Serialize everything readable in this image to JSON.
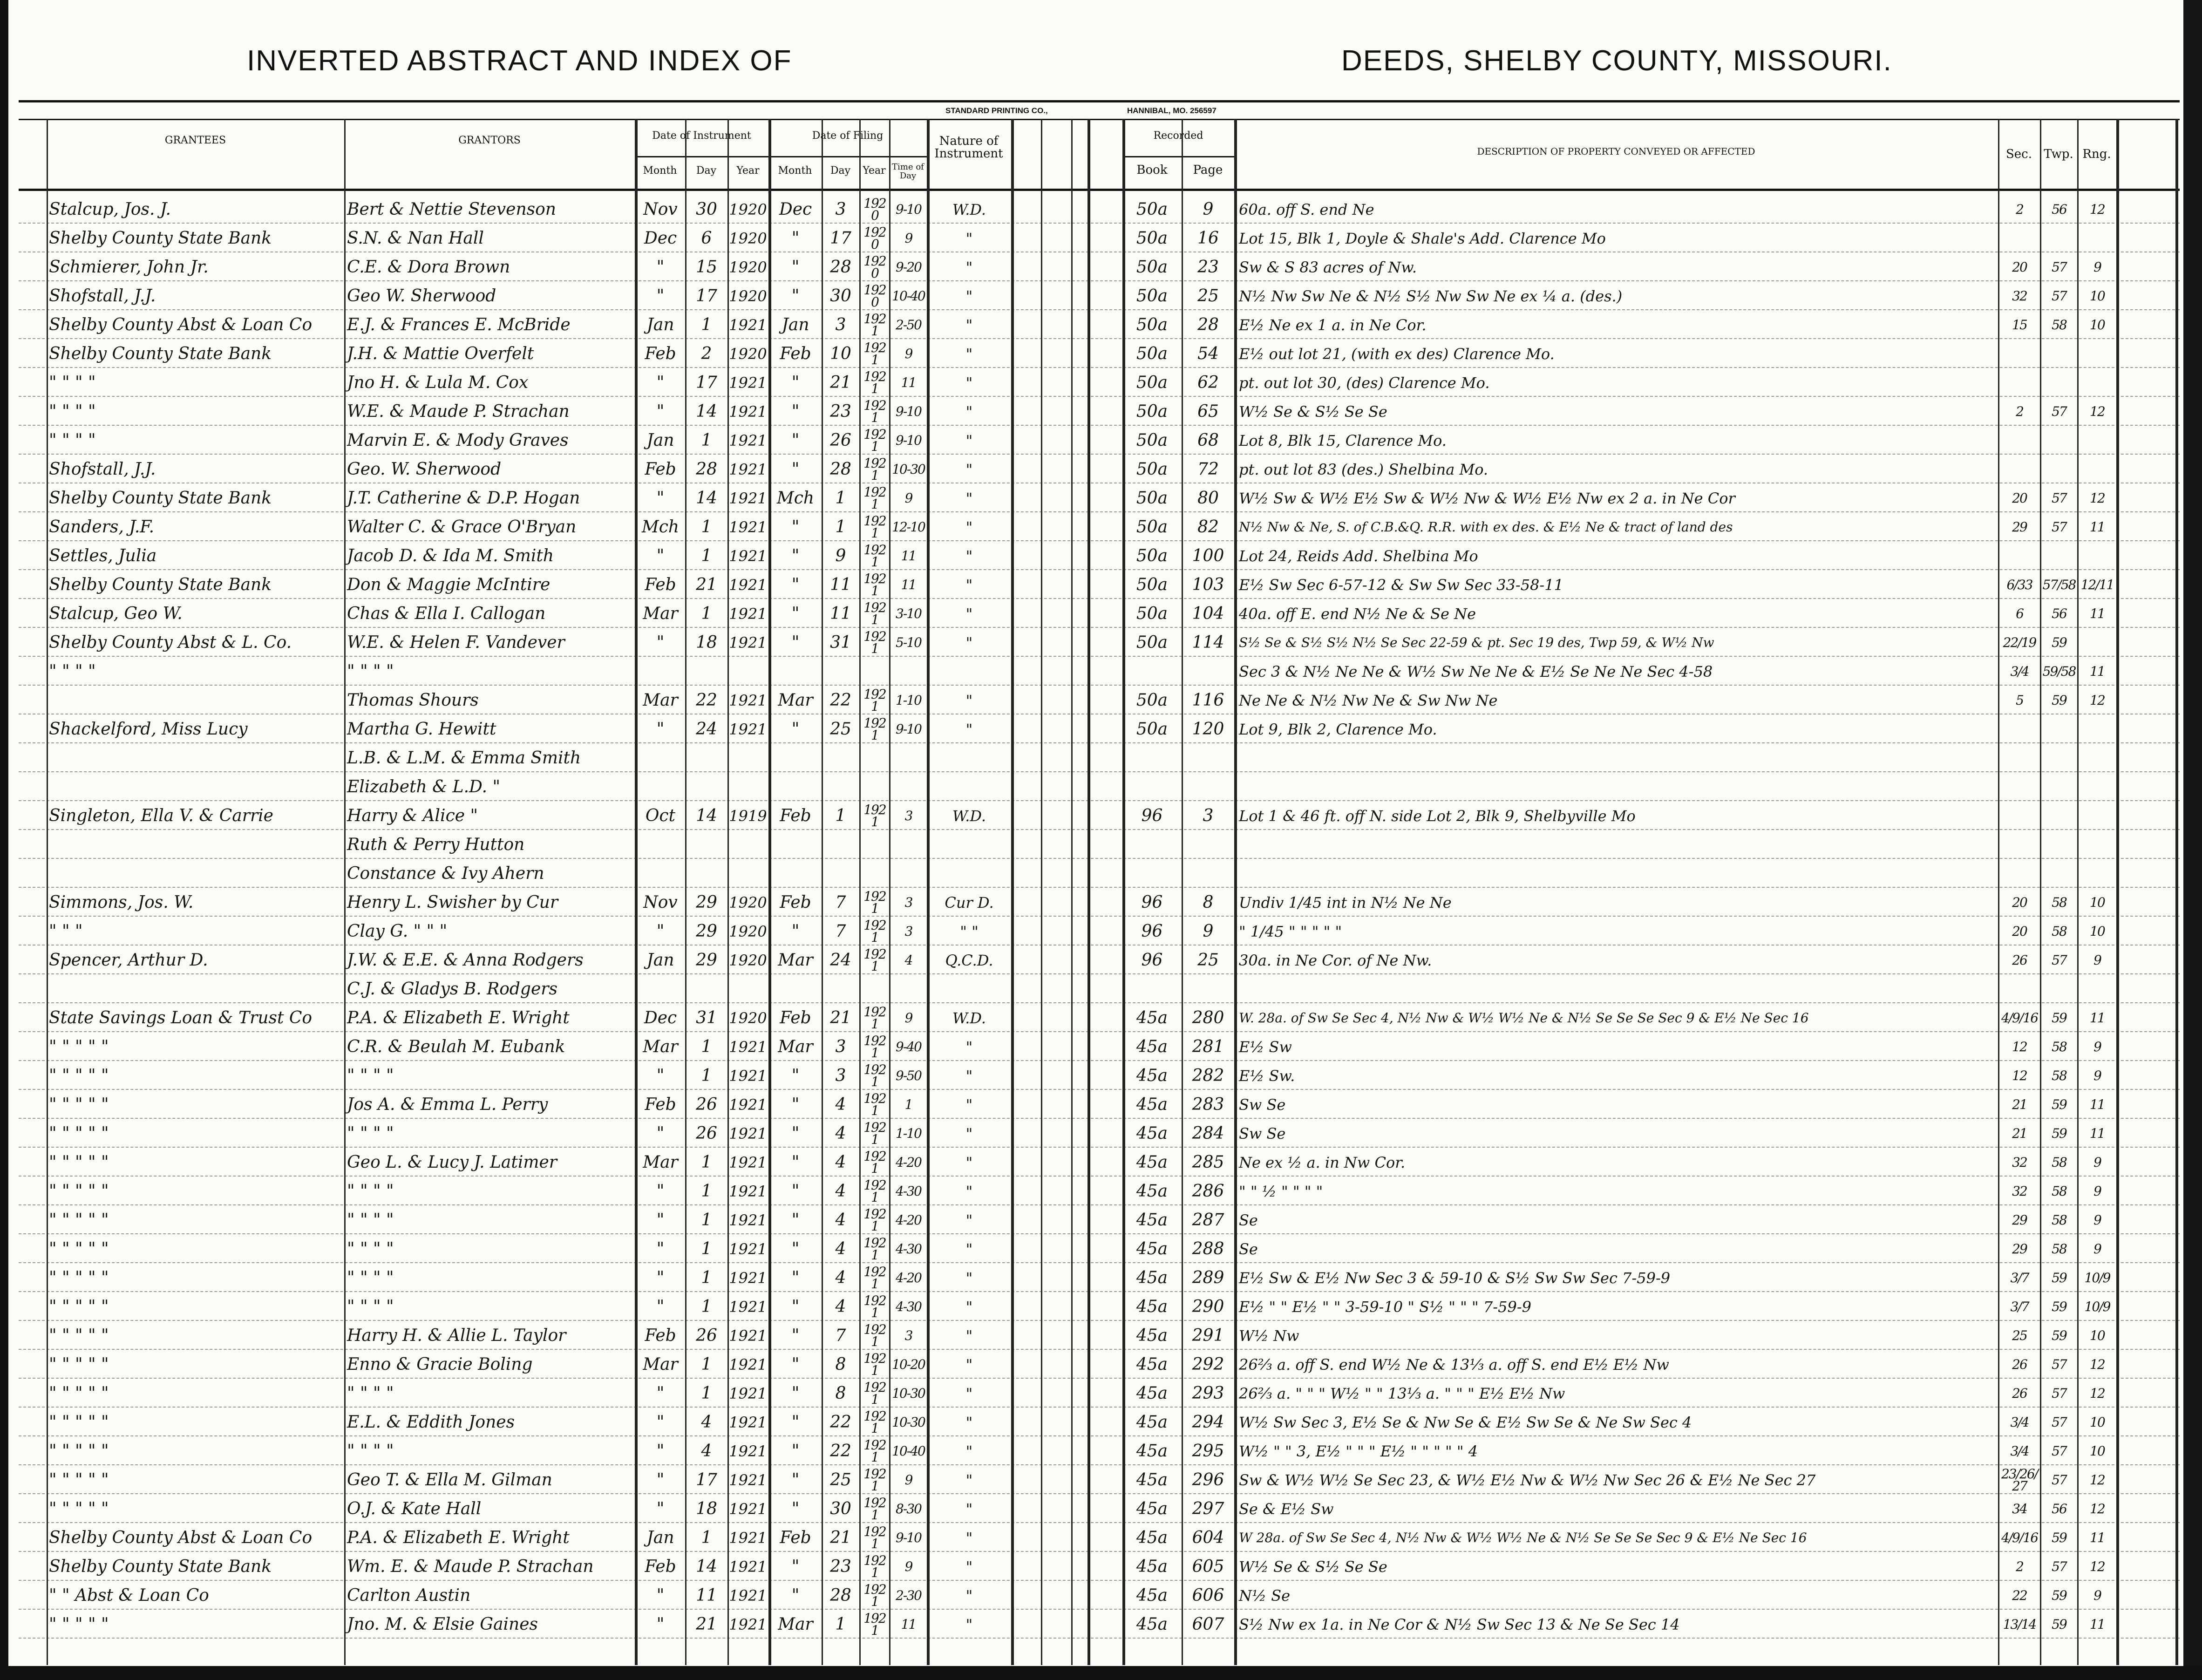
{
  "header": {
    "title_left": "INVERTED ABSTRACT AND INDEX OF",
    "title_right": "DEEDS, SHELBY COUNTY, MISSOURI.",
    "printer_left": "STANDARD PRINTING CO.,",
    "printer_right": "HANNIBAL, MO. 256597"
  },
  "columns": {
    "grantees": "GRANTEES",
    "grantors": "GRANTORS",
    "date_of_instrument": "Date of Instrument",
    "date_of_filing": "Date of Filing",
    "month": "Month",
    "day": "Day",
    "year": "Year",
    "time_of_day": "Time of Day",
    "nature": "Nature of Instrument",
    "recorded": "Recorded",
    "book": "Book",
    "page": "Page",
    "description": "DESCRIPTION OF PROPERTY CONVEYED OR AFFECTED",
    "sec": "Sec.",
    "twp": "Twp.",
    "rng": "Rng."
  },
  "rows": [
    {
      "g": "Stalcup, Jos. J.",
      "gr": "Bert & Nettie Stevenson",
      "im": "Nov",
      "id": "30",
      "iy": "1920",
      "fm": "Dec",
      "fd": "3",
      "fy": "1920",
      "t": "9-10",
      "n": "W.D.",
      "b": "50a",
      "p": "9",
      "d": "60a. off S. end Ne",
      "s": "2",
      "tw": "56",
      "r": "12"
    },
    {
      "g": "Shelby County State Bank",
      "gr": "S.N. & Nan Hall",
      "im": "Dec",
      "id": "6",
      "iy": "1920",
      "fm": "\"",
      "fd": "17",
      "fy": "1920",
      "t": "9",
      "n": "\"",
      "b": "50a",
      "p": "16",
      "d": "Lot 15, Blk 1, Doyle & Shale's Add. Clarence Mo",
      "s": "",
      "tw": "",
      "r": ""
    },
    {
      "g": "Schmierer, John Jr.",
      "gr": "C.E. & Dora Brown",
      "im": "\"",
      "id": "15",
      "iy": "1920",
      "fm": "\"",
      "fd": "28",
      "fy": "1920",
      "t": "9-20",
      "n": "\"",
      "b": "50a",
      "p": "23",
      "d": "Sw & S 83 acres of Nw.",
      "s": "20",
      "tw": "57",
      "r": "9"
    },
    {
      "g": "Shofstall, J.J.",
      "gr": "Geo W. Sherwood",
      "im": "\"",
      "id": "17",
      "iy": "1920",
      "fm": "\"",
      "fd": "30",
      "fy": "1920",
      "t": "10-40",
      "n": "\"",
      "b": "50a",
      "p": "25",
      "d": "N½ Nw Sw Ne & N½ S½ Nw Sw Ne ex ¼ a. (des.)",
      "s": "32",
      "tw": "57",
      "r": "10"
    },
    {
      "g": "Shelby County Abst & Loan Co",
      "gr": "E.J. & Frances E. McBride",
      "im": "Jan",
      "id": "1",
      "iy": "1921",
      "fm": "Jan",
      "fd": "3",
      "fy": "1921",
      "t": "2-50",
      "n": "\"",
      "b": "50a",
      "p": "28",
      "d": "E½ Ne ex 1 a. in Ne Cor.",
      "s": "15",
      "tw": "58",
      "r": "10"
    },
    {
      "g": "Shelby County State Bank",
      "gr": "J.H. & Mattie Overfelt",
      "im": "Feb",
      "id": "2",
      "iy": "1920",
      "fm": "Feb",
      "fd": "10",
      "fy": "1921",
      "t": "9",
      "n": "\"",
      "b": "50a",
      "p": "54",
      "d": "E½ out lot 21, (with ex des) Clarence Mo.",
      "s": "",
      "tw": "",
      "r": ""
    },
    {
      "g": "\"    \"    \"    \"",
      "gr": "Jno H. & Lula M. Cox",
      "im": "\"",
      "id": "17",
      "iy": "1921",
      "fm": "\"",
      "fd": "21",
      "fy": "1921",
      "t": "11",
      "n": "\"",
      "b": "50a",
      "p": "62",
      "d": "pt. out lot 30, (des) Clarence Mo.",
      "s": "",
      "tw": "",
      "r": ""
    },
    {
      "g": "\"    \"    \"    \"",
      "gr": "W.E. & Maude P. Strachan",
      "im": "\"",
      "id": "14",
      "iy": "1921",
      "fm": "\"",
      "fd": "23",
      "fy": "1921",
      "t": "9-10",
      "n": "\"",
      "b": "50a",
      "p": "65",
      "d": "W½ Se & S½ Se Se",
      "s": "2",
      "tw": "57",
      "r": "12"
    },
    {
      "g": "\"    \"    \"    \"",
      "gr": "Marvin E. & Mody Graves",
      "im": "Jan",
      "id": "1",
      "iy": "1921",
      "fm": "\"",
      "fd": "26",
      "fy": "1921",
      "t": "9-10",
      "n": "\"",
      "b": "50a",
      "p": "68",
      "d": "Lot 8, Blk 15, Clarence Mo.",
      "s": "",
      "tw": "",
      "r": ""
    },
    {
      "g": "Shofstall, J.J.",
      "gr": "Geo. W. Sherwood",
      "im": "Feb",
      "id": "28",
      "iy": "1921",
      "fm": "\"",
      "fd": "28",
      "fy": "1921",
      "t": "10-30",
      "n": "\"",
      "b": "50a",
      "p": "72",
      "d": "pt. out lot 83   (des.)   Shelbina Mo.",
      "s": "",
      "tw": "",
      "r": ""
    },
    {
      "g": "Shelby County State Bank",
      "gr": "J.T. Catherine & D.P. Hogan",
      "im": "\"",
      "id": "14",
      "iy": "1921",
      "fm": "Mch",
      "fd": "1",
      "fy": "1921",
      "t": "9",
      "n": "\"",
      "b": "50a",
      "p": "80",
      "d": "W½ Sw & W½ E½ Sw & W½ Nw & W½ E½ Nw ex 2 a. in Ne Cor",
      "s": "20",
      "tw": "57",
      "r": "12"
    },
    {
      "g": "Sanders, J.F.",
      "gr": "Walter C. & Grace O'Bryan",
      "im": "Mch",
      "id": "1",
      "iy": "1921",
      "fm": "\"",
      "fd": "1",
      "fy": "1921",
      "t": "12-10",
      "n": "\"",
      "b": "50a",
      "p": "82",
      "d": "N½ Nw & Ne, S. of C.B.&Q. R.R. with ex des. & E½ Ne & tract of land des",
      "s": "29",
      "tw": "57",
      "r": "11"
    },
    {
      "g": "Settles, Julia",
      "gr": "Jacob D. & Ida M. Smith",
      "im": "\"",
      "id": "1",
      "iy": "1921",
      "fm": "\"",
      "fd": "9",
      "fy": "1921",
      "t": "11",
      "n": "\"",
      "b": "50a",
      "p": "100",
      "d": "Lot 24, Reids Add. Shelbina Mo",
      "s": "",
      "tw": "",
      "r": ""
    },
    {
      "g": "Shelby County State Bank",
      "gr": "Don & Maggie McIntire",
      "im": "Feb",
      "id": "21",
      "iy": "1921",
      "fm": "\"",
      "fd": "11",
      "fy": "1921",
      "t": "11",
      "n": "\"",
      "b": "50a",
      "p": "103",
      "d": "E½ Sw Sec 6-57-12 & Sw Sw Sec 33-58-11",
      "s": "6/33",
      "tw": "57/58",
      "r": "12/11"
    },
    {
      "g": "Stalcup, Geo W.",
      "gr": "Chas & Ella I. Callogan",
      "im": "Mar",
      "id": "1",
      "iy": "1921",
      "fm": "\"",
      "fd": "11",
      "fy": "1921",
      "t": "3-10",
      "n": "\"",
      "b": "50a",
      "p": "104",
      "d": "40a. off E. end N½ Ne & Se Ne",
      "s": "6",
      "tw": "56",
      "r": "11"
    },
    {
      "g": "Shelby County Abst & L. Co.",
      "gr": "W.E. & Helen F. Vandever",
      "im": "\"",
      "id": "18",
      "iy": "1921",
      "fm": "\"",
      "fd": "31",
      "fy": "1921",
      "t": "5-10",
      "n": "\"",
      "b": "50a",
      "p": "114",
      "d": "S½ Se & S½ S½ N½ Se Sec 22-59 & pt. Sec 19 des, Twp 59, & W½ Nw",
      "s": "22/19",
      "tw": "59",
      "r": ""
    },
    {
      "g": "\"    \"    \"    \"",
      "gr": "\"    \"    \"    \"",
      "im": "",
      "id": "",
      "iy": "",
      "fm": "",
      "fd": "",
      "fy": "",
      "t": "",
      "n": "",
      "b": "",
      "p": "",
      "d": "Sec 3 & N½ Ne Ne & W½ Sw Ne Ne & E½ Se Ne Ne Sec 4-58",
      "s": "3/4",
      "tw": "59/58",
      "r": "11"
    },
    {
      "g": "",
      "gr": "Thomas Shours",
      "im": "Mar",
      "id": "22",
      "iy": "1921",
      "fm": "Mar",
      "fd": "22",
      "fy": "1921",
      "t": "1-10",
      "n": "\"",
      "b": "50a",
      "p": "116",
      "d": "Ne Ne & N½ Nw Ne & Sw Nw Ne",
      "s": "5",
      "tw": "59",
      "r": "12"
    },
    {
      "g": "Shackelford, Miss Lucy",
      "gr": "Martha G. Hewitt",
      "im": "\"",
      "id": "24",
      "iy": "1921",
      "fm": "\"",
      "fd": "25",
      "fy": "1921",
      "t": "9-10",
      "n": "\"",
      "b": "50a",
      "p": "120",
      "d": "Lot 9, Blk 2, Clarence Mo.",
      "s": "",
      "tw": "",
      "r": ""
    },
    {
      "g": "",
      "gr": "L.B. & L.M. & Emma Smith",
      "im": "",
      "id": "",
      "iy": "",
      "fm": "",
      "fd": "",
      "fy": "",
      "t": "",
      "n": "",
      "b": "",
      "p": "",
      "d": "",
      "s": "",
      "tw": "",
      "r": ""
    },
    {
      "g": "",
      "gr": "Elizabeth & L.D.   \"",
      "im": "",
      "id": "",
      "iy": "",
      "fm": "",
      "fd": "",
      "fy": "",
      "t": "",
      "n": "",
      "b": "",
      "p": "",
      "d": "",
      "s": "",
      "tw": "",
      "r": ""
    },
    {
      "g": "Singleton, Ella V. & Carrie",
      "gr": "Harry & Alice   \"",
      "im": "Oct",
      "id": "14",
      "iy": "1919",
      "fm": "Feb",
      "fd": "1",
      "fy": "1921",
      "t": "3",
      "n": "W.D.",
      "b": "96",
      "p": "3",
      "d": "Lot 1 & 46 ft. off N. side Lot 2, Blk 9, Shelbyville Mo",
      "s": "",
      "tw": "",
      "r": ""
    },
    {
      "g": "",
      "gr": "Ruth & Perry Hutton",
      "im": "",
      "id": "",
      "iy": "",
      "fm": "",
      "fd": "",
      "fy": "",
      "t": "",
      "n": "",
      "b": "",
      "p": "",
      "d": "",
      "s": "",
      "tw": "",
      "r": ""
    },
    {
      "g": "",
      "gr": "Constance & Ivy Ahern",
      "im": "",
      "id": "",
      "iy": "",
      "fm": "",
      "fd": "",
      "fy": "",
      "t": "",
      "n": "",
      "b": "",
      "p": "",
      "d": "",
      "s": "",
      "tw": "",
      "r": ""
    },
    {
      "g": "Simmons, Jos. W.",
      "gr": "Henry L. Swisher by Cur",
      "im": "Nov",
      "id": "29",
      "iy": "1920",
      "fm": "Feb",
      "fd": "7",
      "fy": "1921",
      "t": "3",
      "n": "Cur D.",
      "b": "96",
      "p": "8",
      "d": "Undiv 1/45 int in N½ Ne Ne",
      "s": "20",
      "tw": "58",
      "r": "10"
    },
    {
      "g": "\"    \"    \"",
      "gr": "Clay G.   \"   \"   \"",
      "im": "\"",
      "id": "29",
      "iy": "1920",
      "fm": "\"",
      "fd": "7",
      "fy": "1921",
      "t": "3",
      "n": "\"  \"",
      "b": "96",
      "p": "9",
      "d": "\"   1/45   \"   \"   \"   \"   \"",
      "s": "20",
      "tw": "58",
      "r": "10"
    },
    {
      "g": "Spencer, Arthur D.",
      "gr": "J.W. & E.E. & Anna Rodgers",
      "im": "Jan",
      "id": "29",
      "iy": "1920",
      "fm": "Mar",
      "fd": "24",
      "fy": "1921",
      "t": "4",
      "n": "Q.C.D.",
      "b": "96",
      "p": "25",
      "d": "30a. in Ne Cor. of Ne Nw.",
      "s": "26",
      "tw": "57",
      "r": "9"
    },
    {
      "g": "",
      "gr": "C.J. & Gladys B. Rodgers",
      "im": "",
      "id": "",
      "iy": "",
      "fm": "",
      "fd": "",
      "fy": "",
      "t": "",
      "n": "",
      "b": "",
      "p": "",
      "d": "",
      "s": "",
      "tw": "",
      "r": ""
    },
    {
      "g": "State Savings Loan & Trust Co",
      "gr": "P.A. & Elizabeth E. Wright",
      "im": "Dec",
      "id": "31",
      "iy": "1920",
      "fm": "Feb",
      "fd": "21",
      "fy": "1921",
      "t": "9",
      "n": "W.D.",
      "b": "45a",
      "p": "280",
      "d": "W. 28a. of Sw Se Sec 4, N½ Nw & W½ W½ Ne & N½ Se Se Se Sec 9 & E½ Ne Sec 16",
      "s": "4/9/16",
      "tw": "59",
      "r": "11"
    },
    {
      "g": "\"    \"    \"    \"    \"",
      "gr": "C.R. & Beulah M. Eubank",
      "im": "Mar",
      "id": "1",
      "iy": "1921",
      "fm": "Mar",
      "fd": "3",
      "fy": "1921",
      "t": "9-40",
      "n": "\"",
      "b": "45a",
      "p": "281",
      "d": "E½ Sw",
      "s": "12",
      "tw": "58",
      "r": "9"
    },
    {
      "g": "\"    \"    \"    \"    \"",
      "gr": "\"    \"    \"    \"",
      "im": "\"",
      "id": "1",
      "iy": "1921",
      "fm": "\"",
      "fd": "3",
      "fy": "1921",
      "t": "9-50",
      "n": "\"",
      "b": "45a",
      "p": "282",
      "d": "E½ Sw.",
      "s": "12",
      "tw": "58",
      "r": "9"
    },
    {
      "g": "\"    \"    \"    \"    \"",
      "gr": "Jos A. & Emma L. Perry",
      "im": "Feb",
      "id": "26",
      "iy": "1921",
      "fm": "\"",
      "fd": "4",
      "fy": "1921",
      "t": "1",
      "n": "\"",
      "b": "45a",
      "p": "283",
      "d": "Sw Se",
      "s": "21",
      "tw": "59",
      "r": "11"
    },
    {
      "g": "\"    \"    \"    \"    \"",
      "gr": "\"    \"    \"    \"",
      "im": "\"",
      "id": "26",
      "iy": "1921",
      "fm": "\"",
      "fd": "4",
      "fy": "1921",
      "t": "1-10",
      "n": "\"",
      "b": "45a",
      "p": "284",
      "d": "Sw Se",
      "s": "21",
      "tw": "59",
      "r": "11"
    },
    {
      "g": "\"    \"    \"    \"    \"",
      "gr": "Geo L. & Lucy J. Latimer",
      "im": "Mar",
      "id": "1",
      "iy": "1921",
      "fm": "\"",
      "fd": "4",
      "fy": "1921",
      "t": "4-20",
      "n": "\"",
      "b": "45a",
      "p": "285",
      "d": "Ne ex ½ a. in Nw Cor.",
      "s": "32",
      "tw": "58",
      "r": "9"
    },
    {
      "g": "\"    \"    \"    \"    \"",
      "gr": "\"    \"    \"    \"",
      "im": "\"",
      "id": "1",
      "iy": "1921",
      "fm": "\"",
      "fd": "4",
      "fy": "1921",
      "t": "4-30",
      "n": "\"",
      "b": "45a",
      "p": "286",
      "d": "\"   \"   ½   \"   \"   \"   \"",
      "s": "32",
      "tw": "58",
      "r": "9"
    },
    {
      "g": "\"    \"    \"    \"    \"",
      "gr": "\"    \"    \"    \"",
      "im": "\"",
      "id": "1",
      "iy": "1921",
      "fm": "\"",
      "fd": "4",
      "fy": "1921",
      "t": "4-20",
      "n": "\"",
      "b": "45a",
      "p": "287",
      "d": "Se",
      "s": "29",
      "tw": "58",
      "r": "9"
    },
    {
      "g": "\"    \"    \"    \"    \"",
      "gr": "\"    \"    \"    \"",
      "im": "\"",
      "id": "1",
      "iy": "1921",
      "fm": "\"",
      "fd": "4",
      "fy": "1921",
      "t": "4-30",
      "n": "\"",
      "b": "45a",
      "p": "288",
      "d": "Se",
      "s": "29",
      "tw": "58",
      "r": "9"
    },
    {
      "g": "\"    \"    \"    \"    \"",
      "gr": "\"    \"    \"    \"",
      "im": "\"",
      "id": "1",
      "iy": "1921",
      "fm": "\"",
      "fd": "4",
      "fy": "1921",
      "t": "4-20",
      "n": "\"",
      "b": "45a",
      "p": "289",
      "d": "E½ Sw & E½ Nw Sec 3 & 59-10 & S½ Sw Sw Sec 7-59-9",
      "s": "3/7",
      "tw": "59",
      "r": "10/9"
    },
    {
      "g": "\"    \"    \"    \"    \"",
      "gr": "\"    \"    \"    \"",
      "im": "\"",
      "id": "1",
      "iy": "1921",
      "fm": "\"",
      "fd": "4",
      "fy": "1921",
      "t": "4-30",
      "n": "\"",
      "b": "45a",
      "p": "290",
      "d": "E½  \"  \"  E½  \"  \"  3-59-10  \"  S½  \"  \"  \"  7-59-9",
      "s": "3/7",
      "tw": "59",
      "r": "10/9"
    },
    {
      "g": "\"    \"    \"    \"    \"",
      "gr": "Harry H. & Allie L. Taylor",
      "im": "Feb",
      "id": "26",
      "iy": "1921",
      "fm": "\"",
      "fd": "7",
      "fy": "1921",
      "t": "3",
      "n": "\"",
      "b": "45a",
      "p": "291",
      "d": "W½ Nw",
      "s": "25",
      "tw": "59",
      "r": "10"
    },
    {
      "g": "\"    \"    \"    \"    \"",
      "gr": "Enno & Gracie Boling",
      "im": "Mar",
      "id": "1",
      "iy": "1921",
      "fm": "\"",
      "fd": "8",
      "fy": "1921",
      "t": "10-20",
      "n": "\"",
      "b": "45a",
      "p": "292",
      "d": "26⅔ a. off S. end W½ Ne & 13⅓ a. off S. end E½ E½ Nw",
      "s": "26",
      "tw": "57",
      "r": "12"
    },
    {
      "g": "\"    \"    \"    \"    \"",
      "gr": "\"    \"    \"    \"",
      "im": "\"",
      "id": "1",
      "iy": "1921",
      "fm": "\"",
      "fd": "8",
      "fy": "1921",
      "t": "10-30",
      "n": "\"",
      "b": "45a",
      "p": "293",
      "d": "26⅔ a.  \"  \"  \"  W½  \"  \"  13⅓ a.  \"  \"  \"  E½ E½ Nw",
      "s": "26",
      "tw": "57",
      "r": "12"
    },
    {
      "g": "\"    \"    \"    \"    \"",
      "gr": "E.L. & Eddith Jones",
      "im": "\"",
      "id": "4",
      "iy": "1921",
      "fm": "\"",
      "fd": "22",
      "fy": "1921",
      "t": "10-30",
      "n": "\"",
      "b": "45a",
      "p": "294",
      "d": "W½ Sw Sec 3, E½ Se & Nw Se & E½ Sw Se & Ne Sw Sec 4",
      "s": "3/4",
      "tw": "57",
      "r": "10"
    },
    {
      "g": "\"    \"    \"    \"    \"",
      "gr": "\"    \"    \"    \"",
      "im": "\"",
      "id": "4",
      "iy": "1921",
      "fm": "\"",
      "fd": "22",
      "fy": "1921",
      "t": "10-40",
      "n": "\"",
      "b": "45a",
      "p": "295",
      "d": "W½  \"  \"  3, E½  \"  \"  \"  E½  \"  \"  \"  \"  \"  4",
      "s": "3/4",
      "tw": "57",
      "r": "10"
    },
    {
      "g": "\"    \"    \"    \"    \"",
      "gr": "Geo T. & Ella M. Gilman",
      "im": "\"",
      "id": "17",
      "iy": "1921",
      "fm": "\"",
      "fd": "25",
      "fy": "1921",
      "t": "9",
      "n": "\"",
      "b": "45a",
      "p": "296",
      "d": "Sw & W½ W½ Se Sec 23, & W½ E½ Nw & W½ Nw Sec 26 & E½ Ne Sec 27",
      "s": "23/26/27",
      "tw": "57",
      "r": "12"
    },
    {
      "g": "\"    \"    \"    \"    \"",
      "gr": "O.J. & Kate Hall",
      "im": "\"",
      "id": "18",
      "iy": "1921",
      "fm": "\"",
      "fd": "30",
      "fy": "1921",
      "t": "8-30",
      "n": "\"",
      "b": "45a",
      "p": "297",
      "d": "Se & E½ Sw",
      "s": "34",
      "tw": "56",
      "r": "12"
    },
    {
      "g": "Shelby County Abst & Loan Co",
      "gr": "P.A. & Elizabeth E. Wright",
      "im": "Jan",
      "id": "1",
      "iy": "1921",
      "fm": "Feb",
      "fd": "21",
      "fy": "1921",
      "t": "9-10",
      "n": "\"",
      "b": "45a",
      "p": "604",
      "d": "W 28a. of Sw Se Sec 4, N½ Nw & W½ W½ Ne & N½ Se Se Se Sec 9 & E½ Ne Sec 16",
      "s": "4/9/16",
      "tw": "59",
      "r": "11"
    },
    {
      "g": "Shelby County State Bank",
      "gr": "Wm. E. & Maude P. Strachan",
      "im": "Feb",
      "id": "14",
      "iy": "1921",
      "fm": "\"",
      "fd": "23",
      "fy": "1921",
      "t": "9",
      "n": "\"",
      "b": "45a",
      "p": "605",
      "d": "W½ Se & S½ Se Se",
      "s": "2",
      "tw": "57",
      "r": "12"
    },
    {
      "g": "\"    \"   Abst & Loan Co",
      "gr": "Carlton Austin",
      "im": "\"",
      "id": "11",
      "iy": "1921",
      "fm": "\"",
      "fd": "28",
      "fy": "1921",
      "t": "2-30",
      "n": "\"",
      "b": "45a",
      "p": "606",
      "d": "N½ Se",
      "s": "22",
      "tw": "59",
      "r": "9"
    },
    {
      "g": "\"    \"    \"    \"    \"",
      "gr": "Jno. M. & Elsie Gaines",
      "im": "\"",
      "id": "21",
      "iy": "1921",
      "fm": "Mar",
      "fd": "1",
      "fy": "1921",
      "t": "11",
      "n": "\"",
      "b": "45a",
      "p": "607",
      "d": "S½ Nw ex 1a. in Ne Cor & N½ Sw Sec 13 & Ne Se Sec 14",
      "s": "13/14",
      "tw": "59",
      "r": "11"
    }
  ]
}
